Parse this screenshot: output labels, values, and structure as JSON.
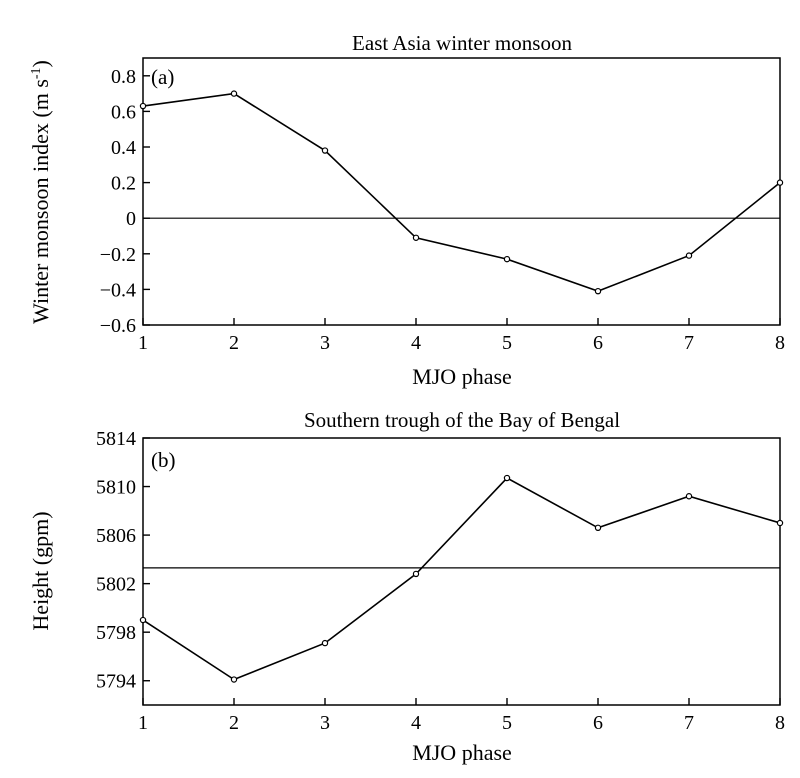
{
  "chart_data": [
    {
      "type": "line",
      "panel_label": "(a)",
      "title": "East Asia winter monsoon",
      "xlabel": "MJO phase",
      "ylabel": "Winter monsoon index (m s",
      "ylabel_sup": "-1",
      "ylabel_close": ")",
      "x": [
        1,
        2,
        3,
        4,
        5,
        6,
        7,
        8
      ],
      "values": [
        0.63,
        0.7,
        0.38,
        -0.11,
        -0.23,
        -0.41,
        -0.21,
        0.2
      ],
      "reference_line": 0,
      "xlim": [
        1,
        8
      ],
      "ylim": [
        -0.6,
        0.9
      ],
      "xticks": [
        "1",
        "2",
        "3",
        "4",
        "5",
        "6",
        "7",
        "8"
      ],
      "yticks": [
        {
          "value": 0.8,
          "label": "0.8"
        },
        {
          "value": 0.6,
          "label": "0.6"
        },
        {
          "value": 0.4,
          "label": "0.4"
        },
        {
          "value": 0.2,
          "label": "0.2"
        },
        {
          "value": 0,
          "label": "0"
        },
        {
          "value": -0.2,
          "label": "−0.2"
        },
        {
          "value": -0.4,
          "label": "−0.4"
        },
        {
          "value": -0.6,
          "label": "−0.6"
        }
      ],
      "grid": false,
      "marker": "open-circle",
      "color": "#000000"
    },
    {
      "type": "line",
      "panel_label": "(b)",
      "title": "Southern trough of the Bay of Bengal",
      "xlabel": "MJO phase",
      "ylabel": "Height (gpm)",
      "x": [
        1,
        2,
        3,
        4,
        5,
        6,
        7,
        8
      ],
      "values": [
        5799.0,
        5794.1,
        5797.1,
        5802.8,
        5810.7,
        5806.6,
        5809.2,
        5807.0
      ],
      "reference_line": 5803.3,
      "xlim": [
        1,
        8
      ],
      "ylim": [
        5792,
        5814
      ],
      "xticks": [
        "1",
        "2",
        "3",
        "4",
        "5",
        "6",
        "7",
        "8"
      ],
      "yticks": [
        {
          "value": 5814,
          "label": "5814"
        },
        {
          "value": 5810,
          "label": "5810"
        },
        {
          "value": 5806,
          "label": "5806"
        },
        {
          "value": 5802,
          "label": "5802"
        },
        {
          "value": 5798,
          "label": "5798"
        },
        {
          "value": 5794,
          "label": "5794"
        }
      ],
      "grid": false,
      "marker": "open-circle",
      "color": "#000000"
    }
  ]
}
